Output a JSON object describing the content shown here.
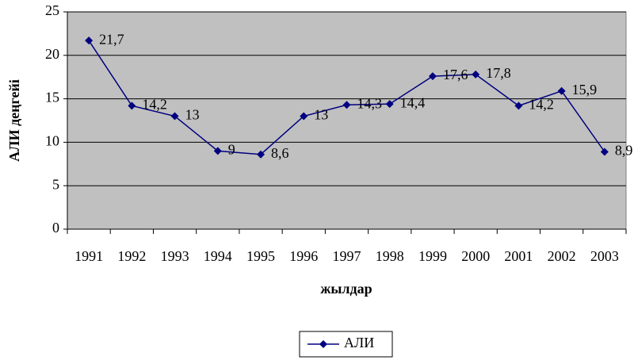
{
  "chart_data": {
    "type": "line",
    "x_label": "жылдар",
    "y_label": "АЛИ деңгейі",
    "categories": [
      "1991",
      "1992",
      "1993",
      "1994",
      "1995",
      "1996",
      "1997",
      "1998",
      "1999",
      "2000",
      "2001",
      "2002",
      "2003"
    ],
    "series": [
      {
        "name": "АЛИ",
        "color": "#000080",
        "values": [
          21.7,
          14.2,
          13,
          9,
          8.6,
          13,
          14.3,
          14.4,
          17.6,
          17.8,
          14.2,
          15.9,
          8.9
        ],
        "value_labels": [
          "21,7",
          "14,2",
          "13",
          "9",
          "8,6",
          "13",
          "14,3",
          "14,4",
          "17,6",
          "17,8",
          "14,2",
          "15,9",
          "8,9"
        ]
      }
    ],
    "ylim": [
      0,
      25
    ],
    "yticks": [
      0,
      5,
      10,
      15,
      20,
      25
    ],
    "grid": true,
    "plot_background": "#c0c0c0",
    "legend": "bottom"
  }
}
